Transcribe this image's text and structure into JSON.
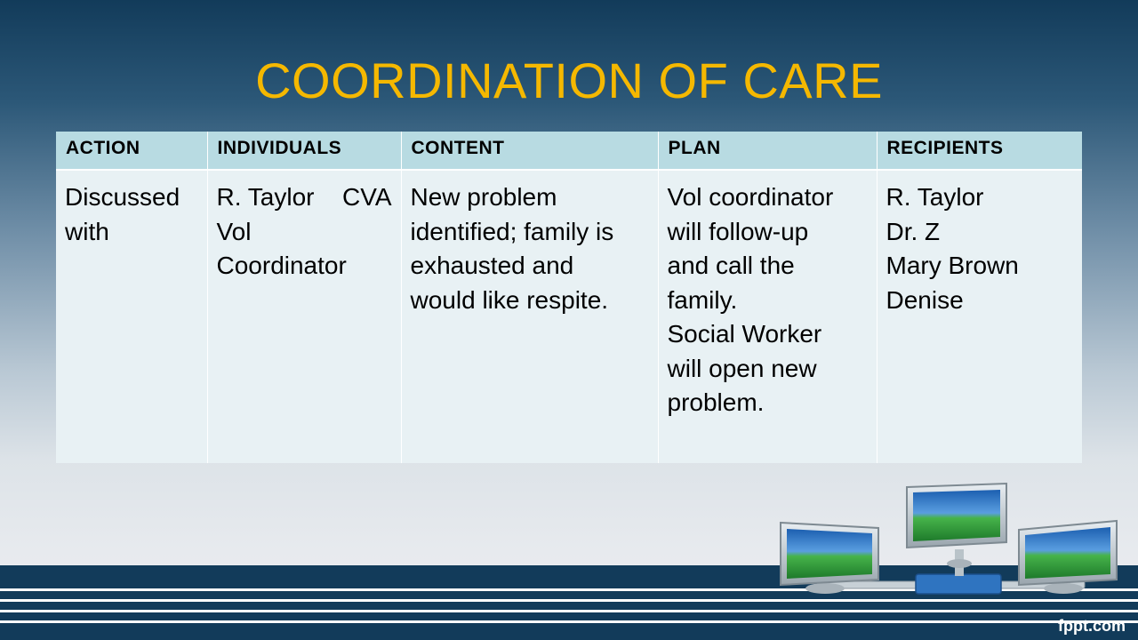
{
  "slide": {
    "title": "COORDINATION OF CARE",
    "brand": "fppt.com"
  },
  "table": {
    "headers": [
      "ACTION",
      "INDIVIDUALS",
      "CONTENT",
      "PLAN",
      "RECIPIENTS"
    ],
    "row": {
      "action": [
        "Discussed",
        "with"
      ],
      "individuals": {
        "line1_left": "R. Taylor",
        "line1_right": "CVA",
        "lines": [
          "Vol",
          "Coordinator"
        ]
      },
      "content": [
        "New problem",
        "identified; family is",
        "exhausted and",
        "would like respite."
      ],
      "plan": [
        "Vol coordinator",
        "will follow-up",
        "and call the",
        "family.",
        "Social Worker",
        "will open new",
        "problem."
      ],
      "recipients": [
        "R. Taylor",
        "Dr. Z",
        "Mary Brown",
        "Denise"
      ]
    }
  },
  "colors": {
    "title": "#f5b800",
    "header_bg": "#b8dbe2",
    "body_bg": "#e8f1f4",
    "navy": "#123b5a"
  },
  "illustration": {
    "icon": "network-computers-icon"
  }
}
